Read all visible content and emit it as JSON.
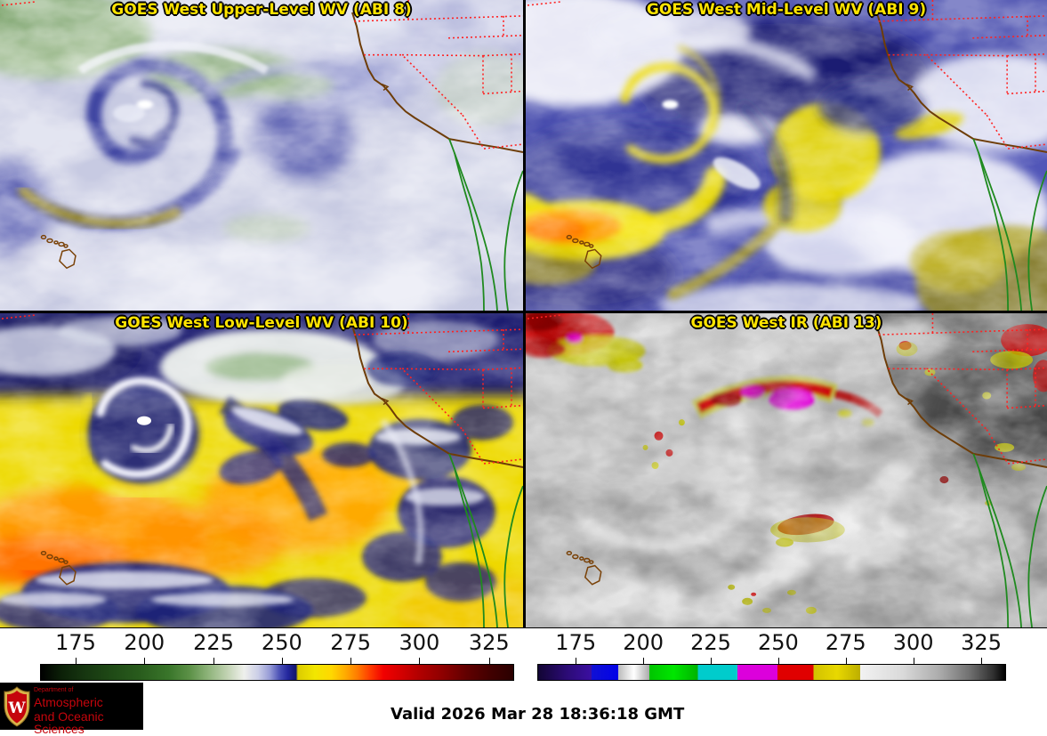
{
  "display": {
    "panels": [
      {
        "id": "abi8",
        "title": "GOES West Upper-Level WV (ABI 8)"
      },
      {
        "id": "abi9",
        "title": "GOES West Mid-Level WV (ABI 9)"
      },
      {
        "id": "abi10",
        "title": "GOES West Low-Level WV (ABI 10)"
      },
      {
        "id": "abi13",
        "title": "GOES West IR (ABI 13)"
      }
    ]
  },
  "colorbars": [
    {
      "id": "wv-brightness-temperature-scale",
      "tick_labels": [
        "175",
        "200",
        "225",
        "250",
        "275",
        "300",
        "325"
      ],
      "tick_positions_pct": [
        7.5,
        22.0,
        36.6,
        51.0,
        65.5,
        80.0,
        94.7
      ],
      "gradient_stops": [
        [
          "#000000",
          0
        ],
        [
          "#0c2108",
          4.5
        ],
        [
          "#163510",
          9
        ],
        [
          "#1f4a16",
          15
        ],
        [
          "#295c1d",
          21
        ],
        [
          "#39752a",
          27
        ],
        [
          "#5c9147",
          31.5
        ],
        [
          "#8fb47b",
          35.5
        ],
        [
          "#c2d3b3",
          39.5
        ],
        [
          "#eff0ec",
          43
        ],
        [
          "#cbcee7",
          46
        ],
        [
          "#959ad6",
          48.5
        ],
        [
          "#4b51b6",
          50.5
        ],
        [
          "#23279e",
          52.3
        ],
        [
          "#13166b",
          54
        ],
        [
          "#dccc00",
          54.4
        ],
        [
          "#f2e600",
          58
        ],
        [
          "#ffd800",
          61.5
        ],
        [
          "#ffaa00",
          64.5
        ],
        [
          "#ff7c00",
          67
        ],
        [
          "#ff4000",
          69.5
        ],
        [
          "#f20000",
          72.5
        ],
        [
          "#d60000",
          76
        ],
        [
          "#b20000",
          80
        ],
        [
          "#8e0000",
          85
        ],
        [
          "#620000",
          90
        ],
        [
          "#420000",
          95
        ],
        [
          "#2a0000",
          100
        ]
      ]
    },
    {
      "id": "ir-brightness-temperature-scale",
      "tick_labels": [
        "175",
        "200",
        "225",
        "250",
        "275",
        "300",
        "325"
      ],
      "tick_positions_pct": [
        8.2,
        22.6,
        37.0,
        51.4,
        65.8,
        80.2,
        94.7
      ],
      "gradient_stops": [
        [
          "#120534",
          0
        ],
        [
          "#2b0b74",
          6
        ],
        [
          "#3b0fa2",
          11.4
        ],
        [
          "#1010d4",
          11.4
        ],
        [
          "#0202e8",
          17.1
        ],
        [
          "#bababa",
          17.1
        ],
        [
          "#ffffff",
          20.5
        ],
        [
          "#aaaaaa",
          23.8
        ],
        [
          "#00c400",
          23.8
        ],
        [
          "#00e600",
          29
        ],
        [
          "#00b200",
          34.2
        ],
        [
          "#00cccc",
          34.2
        ],
        [
          "#00cccc",
          42.7
        ],
        [
          "#dc00dc",
          42.7
        ],
        [
          "#dc00dc",
          51.2
        ],
        [
          "#e00000",
          51.2
        ],
        [
          "#e00000",
          59
        ],
        [
          "#d2c200",
          59
        ],
        [
          "#e8d800",
          64
        ],
        [
          "#bcae00",
          69
        ],
        [
          "#f2f2f2",
          69
        ],
        [
          "#dadada",
          78
        ],
        [
          "#ababab",
          86
        ],
        [
          "#6f6f6f",
          92.5
        ],
        [
          "#2f2f2f",
          97.5
        ],
        [
          "#000000",
          100
        ]
      ]
    }
  ],
  "footer": {
    "valid_time": "Valid 2026 Mar 28 18:36:18 GMT"
  },
  "logo": {
    "dept_line": "Department of",
    "name_line1": "Atmospheric",
    "name_line2": "and Oceanic Sciences",
    "crest_letter": "W"
  },
  "colors": {
    "panel_title": "#ffe400",
    "coastline": "#6e3d08",
    "state_borders": "#ff2222",
    "mexico_outline": "#1f8a1f",
    "hawaii_outline": "#7a4208",
    "uw_red": "#c5050c",
    "logo_bg": "#000000"
  }
}
